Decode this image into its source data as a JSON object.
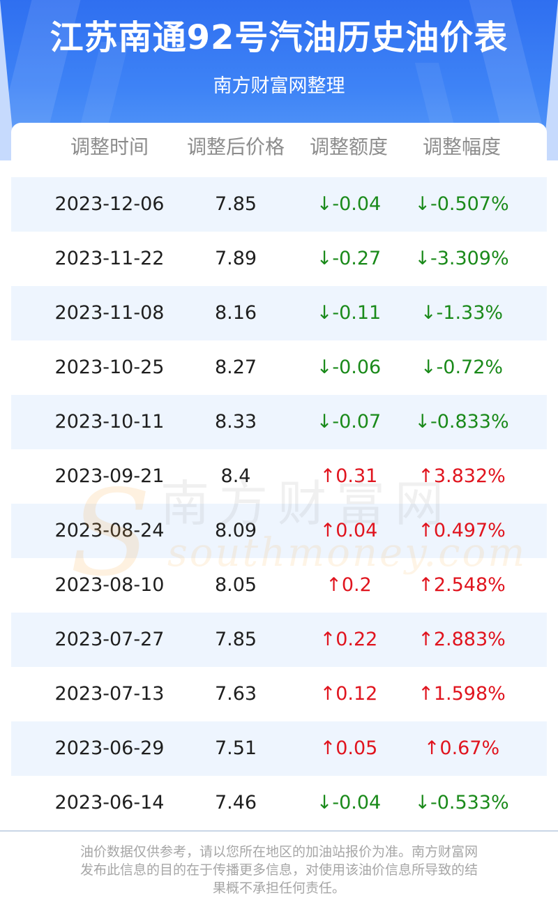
{
  "header": {
    "title": "江苏南通92号汽油历史油价表",
    "subtitle": "南方财富网整理"
  },
  "table": {
    "columns": [
      "调整时间",
      "调整后价格",
      "调整额度",
      "调整幅度"
    ],
    "rows": [
      {
        "date": "2023-12-06",
        "price": "7.85",
        "amount": "↓-0.04",
        "percent": "↓-0.507%",
        "direction": "down"
      },
      {
        "date": "2023-11-22",
        "price": "7.89",
        "amount": "↓-0.27",
        "percent": "↓-3.309%",
        "direction": "down"
      },
      {
        "date": "2023-11-08",
        "price": "8.16",
        "amount": "↓-0.11",
        "percent": "↓-1.33%",
        "direction": "down"
      },
      {
        "date": "2023-10-25",
        "price": "8.27",
        "amount": "↓-0.06",
        "percent": "↓-0.72%",
        "direction": "down"
      },
      {
        "date": "2023-10-11",
        "price": "8.33",
        "amount": "↓-0.07",
        "percent": "↓-0.833%",
        "direction": "down"
      },
      {
        "date": "2023-09-21",
        "price": "8.4",
        "amount": "↑0.31",
        "percent": "↑3.832%",
        "direction": "up"
      },
      {
        "date": "2023-08-24",
        "price": "8.09",
        "amount": "↑0.04",
        "percent": "↑0.497%",
        "direction": "up"
      },
      {
        "date": "2023-08-10",
        "price": "8.05",
        "amount": "↑0.2",
        "percent": "↑2.548%",
        "direction": "up"
      },
      {
        "date": "2023-07-27",
        "price": "7.85",
        "amount": "↑0.22",
        "percent": "↑2.883%",
        "direction": "up"
      },
      {
        "date": "2023-07-13",
        "price": "7.63",
        "amount": "↑0.12",
        "percent": "↑1.598%",
        "direction": "up"
      },
      {
        "date": "2023-06-29",
        "price": "7.51",
        "amount": "↑0.05",
        "percent": "↑0.67%",
        "direction": "up"
      },
      {
        "date": "2023-06-14",
        "price": "7.46",
        "amount": "↓-0.04",
        "percent": "↓-0.533%",
        "direction": "down"
      }
    ]
  },
  "watermark": {
    "cn": "南方财富网",
    "en": "southmoney.com"
  },
  "footer": {
    "disclaimer_lines": [
      "油价数据仅供参考，请以您所在地区的加油站报价为准。南方财富网",
      "发布此信息的目的在于传播更多信息，对使用该油价信息所导致的结",
      "果概不承担任何责任。"
    ]
  },
  "colors": {
    "header_blue": "#3e83f6",
    "row_alt": "#eef5fe",
    "down_green": "#1a8a1a",
    "up_red": "#e0141e",
    "header_text_gray": "#8c8c8c",
    "footer_gray": "#a6a6a6"
  }
}
